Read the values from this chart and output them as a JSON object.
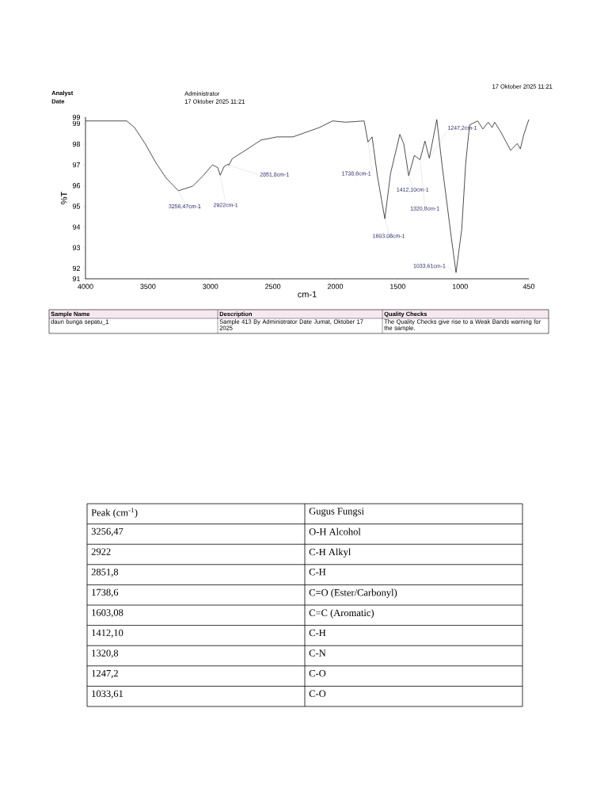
{
  "chart_data": [
    {
      "type": "line",
      "xlabel": "cm-1",
      "ylabel": "%T",
      "xlim": [
        4000,
        450
      ],
      "ylim": [
        91.5,
        99.3
      ],
      "xticks": [
        4000,
        3500,
        3000,
        2500,
        2000,
        1500,
        1000,
        450
      ],
      "yticks": [
        {
          "value": 91.5,
          "label": "91"
        },
        92,
        93,
        94,
        95,
        96,
        97,
        98,
        99,
        {
          "value": 99.3,
          "label": "99"
        }
      ],
      "series": [
        {
          "color": "#222222",
          "x": [
            4000,
            3670,
            3607,
            3523,
            3438,
            3353,
            3256,
            3142,
            3057,
            2984,
            2941,
            2922,
            2889,
            2857,
            2852,
            2825,
            2720,
            2593,
            2466,
            2339,
            2128,
            2022,
            1916,
            1769,
            1738,
            1705,
            1663,
            1603,
            1557,
            1483,
            1452,
            1412,
            1367,
            1321,
            1282,
            1247,
            1187,
            1145,
            1071,
            1033,
            987,
            955,
            924,
            860,
            818,
            775,
            744,
            723,
            670,
            596,
            543,
            518,
            490,
            450
          ],
          "values": [
            99.12,
            99.12,
            98.8,
            98.03,
            97.12,
            96.35,
            95.75,
            95.97,
            96.48,
            97.0,
            96.87,
            96.5,
            96.93,
            97.03,
            96.98,
            97.3,
            97.7,
            98.2,
            98.35,
            98.35,
            98.8,
            99.12,
            99.06,
            99.12,
            98.1,
            98.35,
            96.48,
            94.4,
            96.6,
            98.47,
            98.03,
            96.48,
            97.45,
            97.25,
            98.15,
            97.32,
            99.19,
            97.0,
            93.5,
            91.8,
            93.9,
            97.12,
            98.93,
            99.12,
            98.73,
            99.06,
            98.8,
            99.06,
            98.54,
            97.7,
            98.03,
            97.77,
            98.47,
            99.19
          ]
        }
      ],
      "annotations": [
        {
          "text": "3256,47cm-1",
          "x": 3256,
          "y": 95.75
        },
        {
          "text": "2922cm-1",
          "x": 2922,
          "y": 96.5
        },
        {
          "text": "2851,8cm-1",
          "x": 2852,
          "y": 96.98
        },
        {
          "text": "1738,6cm-1",
          "x": 1738,
          "y": 98.1
        },
        {
          "text": "1603,08cm-1",
          "x": 1603,
          "y": 94.4
        },
        {
          "text": "1412,10cm-1",
          "x": 1412,
          "y": 96.48
        },
        {
          "text": "1320,8cm-1",
          "x": 1321,
          "y": 97.25
        },
        {
          "text": "1247,2cm-1",
          "x": 1247,
          "y": 97.32
        },
        {
          "text": "1033,61cm-1",
          "x": 1033,
          "y": 91.8
        },
        "Analyst",
        "Administrator",
        "Date",
        "17 Oktober 2025 11:21",
        "17 Oktober 2025 11:21",
        "Sample Name",
        "Description",
        "Quality Checks",
        "daun bunga sepatu_1",
        "Sample 413 By Administrator Date Jumat, Oktober 17 2025",
        "The Quality Checks give rise to a Weak Bands warning for the sample."
      ]
    },
    {
      "type": "other",
      "annotations": [
        "Peak (cm$^{-1}$)",
        "Gugus Fungsi",
        "3256,47",
        "O-H Alcohol",
        "2922",
        "C-H Alkyl",
        "2851,8",
        "C-H",
        "1738,6",
        "C=O (Ester/Carbonyl)",
        "1603,08",
        "C=C (Aromatic)",
        "1412,10",
        "C-H",
        "1320,8",
        "C-N",
        "1247,2",
        "C-O",
        "1033,61",
        "C-O"
      ]
    }
  ]
}
